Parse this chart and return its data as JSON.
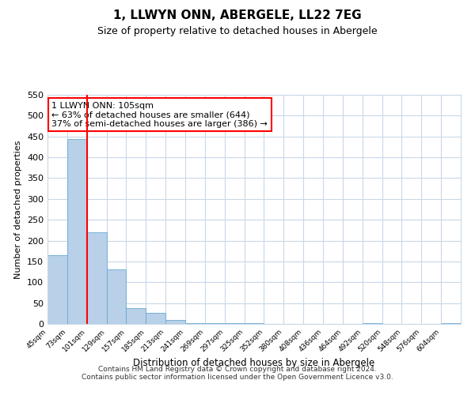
{
  "title": "1, LLWYN ONN, ABERGELE, LL22 7EG",
  "subtitle": "Size of property relative to detached houses in Abergele",
  "xlabel": "Distribution of detached houses by size in Abergele",
  "ylabel": "Number of detached properties",
  "bin_labels": [
    "45sqm",
    "73sqm",
    "101sqm",
    "129sqm",
    "157sqm",
    "185sqm",
    "213sqm",
    "241sqm",
    "269sqm",
    "297sqm",
    "325sqm",
    "352sqm",
    "380sqm",
    "408sqm",
    "436sqm",
    "464sqm",
    "492sqm",
    "520sqm",
    "548sqm",
    "576sqm",
    "604sqm"
  ],
  "bar_values": [
    165,
    443,
    220,
    130,
    37,
    26,
    10,
    2,
    1,
    1,
    1,
    0,
    0,
    0,
    0,
    0,
    1,
    0,
    0,
    0,
    1
  ],
  "bar_color": "#b8d0e8",
  "bar_edgecolor": "#6aaad4",
  "ylim": [
    0,
    550
  ],
  "yticks": [
    0,
    50,
    100,
    150,
    200,
    250,
    300,
    350,
    400,
    450,
    500,
    550
  ],
  "annotation_title": "1 LLWYN ONN: 105sqm",
  "annotation_line1": "← 63% of detached houses are smaller (644)",
  "annotation_line2": "37% of semi-detached houses are larger (386) →",
  "footer_line1": "Contains HM Land Registry data © Crown copyright and database right 2024.",
  "footer_line2": "Contains public sector information licensed under the Open Government Licence v3.0.",
  "background_color": "#ffffff",
  "grid_color": "#c8d8e8",
  "title_fontsize": 11,
  "subtitle_fontsize": 9
}
